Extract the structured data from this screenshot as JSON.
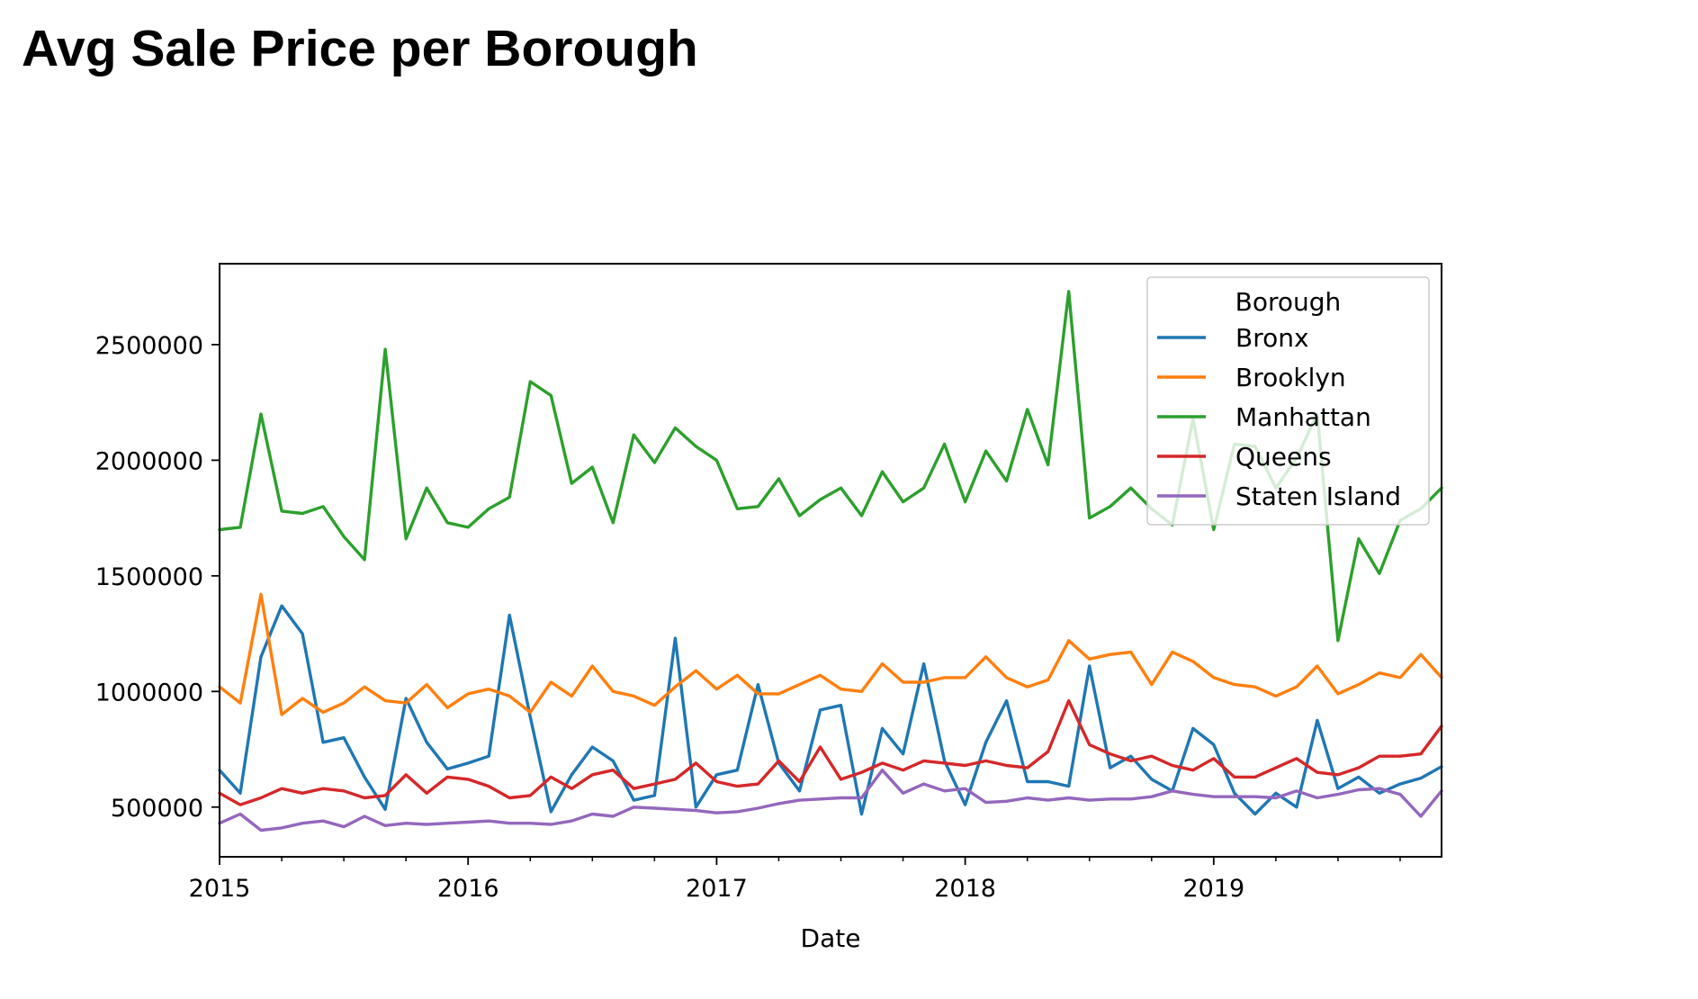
{
  "page": {
    "title": "Avg Sale Price per Borough"
  },
  "chart_data": {
    "type": "line",
    "title": "",
    "xlabel": "Date",
    "ylabel": "",
    "x_axis_type": "date",
    "x_start": "2015-01",
    "x_end": "2019-12",
    "x_frequency": "monthly",
    "xlim": [
      "2015-01",
      "2019-12"
    ],
    "ylim": [
      285000,
      2850000
    ],
    "x_ticks": [
      "2015",
      "2016",
      "2017",
      "2018",
      "2019"
    ],
    "y_ticks": [
      500000,
      1000000,
      1500000,
      2000000,
      2500000
    ],
    "y_tick_labels": [
      "500000",
      "1000000",
      "1500000",
      "2000000",
      "2500000"
    ],
    "grid": false,
    "legend": {
      "title": "Borough",
      "placement": "top-right"
    },
    "series": [
      {
        "name": "Bronx",
        "color": "#1f77b4",
        "values": [
          660000,
          560000,
          1150000,
          1370000,
          1250000,
          780000,
          800000,
          630000,
          490000,
          970000,
          780000,
          665000,
          690000,
          720000,
          1330000,
          890000,
          480000,
          640000,
          760000,
          700000,
          530000,
          550000,
          1230000,
          500000,
          640000,
          660000,
          1030000,
          690000,
          570000,
          920000,
          940000,
          470000,
          840000,
          730000,
          1120000,
          700000,
          510000,
          780000,
          960000,
          610000,
          610000,
          590000,
          1110000,
          670000,
          720000,
          620000,
          570000,
          840000,
          770000,
          560000,
          470000,
          560000,
          500000,
          875000,
          580000,
          630000,
          560000,
          600000,
          625000,
          675000
        ]
      },
      {
        "name": "Brooklyn",
        "color": "#ff7f0e",
        "values": [
          1020000,
          950000,
          1420000,
          900000,
          970000,
          910000,
          950000,
          1020000,
          960000,
          950000,
          1030000,
          930000,
          990000,
          1010000,
          980000,
          910000,
          1040000,
          980000,
          1110000,
          1000000,
          980000,
          940000,
          1020000,
          1090000,
          1010000,
          1070000,
          990000,
          990000,
          1030000,
          1070000,
          1010000,
          1000000,
          1120000,
          1040000,
          1040000,
          1060000,
          1060000,
          1150000,
          1060000,
          1020000,
          1050000,
          1220000,
          1140000,
          1160000,
          1170000,
          1030000,
          1170000,
          1130000,
          1060000,
          1030000,
          1020000,
          980000,
          1020000,
          1110000,
          990000,
          1030000,
          1080000,
          1060000,
          1160000,
          1060000
        ]
      },
      {
        "name": "Manhattan",
        "color": "#2ca02c",
        "values": [
          1700000,
          1710000,
          2200000,
          1780000,
          1770000,
          1800000,
          1670000,
          1570000,
          2480000,
          1660000,
          1880000,
          1730000,
          1710000,
          1790000,
          1840000,
          2340000,
          2280000,
          1900000,
          1970000,
          1730000,
          2110000,
          1990000,
          2140000,
          2060000,
          2000000,
          1790000,
          1800000,
          1920000,
          1760000,
          1830000,
          1880000,
          1760000,
          1950000,
          1820000,
          1880000,
          2070000,
          1820000,
          2040000,
          1910000,
          2220000,
          1980000,
          2730000,
          1750000,
          1800000,
          1880000,
          1790000,
          1720000,
          2180000,
          1700000,
          2070000,
          2060000,
          1880000,
          2010000,
          2200000,
          1220000,
          1660000,
          1510000,
          1740000,
          1790000,
          1880000
        ]
      },
      {
        "name": "Queens",
        "color": "#d62728",
        "values": [
          560000,
          510000,
          540000,
          580000,
          560000,
          580000,
          570000,
          540000,
          550000,
          640000,
          560000,
          630000,
          620000,
          590000,
          540000,
          550000,
          630000,
          580000,
          640000,
          660000,
          580000,
          600000,
          620000,
          690000,
          610000,
          590000,
          600000,
          700000,
          610000,
          760000,
          620000,
          650000,
          690000,
          660000,
          700000,
          690000,
          680000,
          700000,
          680000,
          670000,
          740000,
          960000,
          770000,
          730000,
          700000,
          720000,
          680000,
          660000,
          710000,
          630000,
          630000,
          670000,
          710000,
          650000,
          640000,
          670000,
          720000,
          720000,
          730000,
          850000
        ]
      },
      {
        "name": "Staten Island",
        "color": "#9467bd",
        "values": [
          430000,
          470000,
          400000,
          410000,
          430000,
          440000,
          415000,
          460000,
          420000,
          430000,
          425000,
          430000,
          435000,
          440000,
          430000,
          430000,
          425000,
          440000,
          470000,
          460000,
          500000,
          495000,
          490000,
          485000,
          475000,
          480000,
          495000,
          515000,
          530000,
          535000,
          540000,
          540000,
          660000,
          560000,
          600000,
          570000,
          580000,
          520000,
          525000,
          540000,
          530000,
          540000,
          530000,
          535000,
          535000,
          545000,
          570000,
          555000,
          545000,
          545000,
          545000,
          540000,
          570000,
          540000,
          555000,
          575000,
          580000,
          555000,
          460000,
          570000
        ]
      }
    ]
  }
}
